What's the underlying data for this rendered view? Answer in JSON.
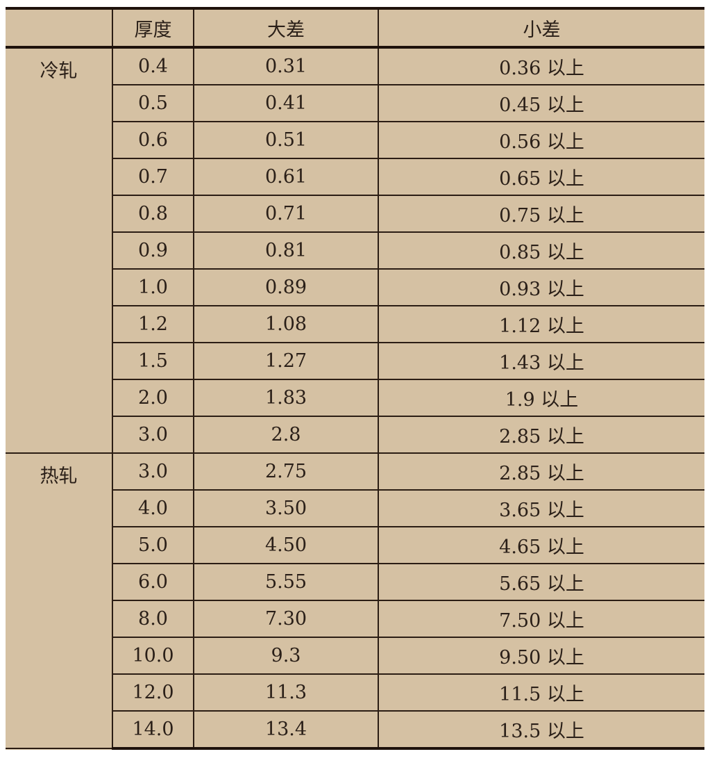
{
  "table": {
    "headers": [
      "",
      "厚度",
      "大差",
      "小差"
    ],
    "groups": [
      {
        "label": "冷轧",
        "rows": [
          [
            "0.4",
            "0.31",
            "0.36 以上"
          ],
          [
            "0.5",
            "0.41",
            "0.45 以上"
          ],
          [
            "0.6",
            "0.51",
            "0.56 以上"
          ],
          [
            "0.7",
            "0.61",
            "0.65 以上"
          ],
          [
            "0.8",
            "0.71",
            "0.75 以上"
          ],
          [
            "0.9",
            "0.81",
            "0.85 以上"
          ],
          [
            "1.0",
            "0.89",
            "0.93 以上"
          ],
          [
            "1.2",
            "1.08",
            "1.12 以上"
          ],
          [
            "1.5",
            "1.27",
            "1.43 以上"
          ],
          [
            "2.0",
            "1.83",
            "1.9 以上"
          ],
          [
            "3.0",
            "2.8",
            "2.85 以上"
          ]
        ]
      },
      {
        "label": "热轧",
        "rows": [
          [
            "3.0",
            "2.75",
            "2.85 以上"
          ],
          [
            "4.0",
            "3.50",
            "3.65 以上"
          ],
          [
            "5.0",
            "4.50",
            "4.65 以上"
          ],
          [
            "6.0",
            "5.55",
            "5.65 以上"
          ],
          [
            "8.0",
            "7.30",
            "7.50 以上"
          ],
          [
            "10.0",
            "9.3",
            "9.50 以上"
          ],
          [
            "12.0",
            "11.3",
            "11.5 以上"
          ],
          [
            "14.0",
            "13.4",
            "13.5 以上"
          ]
        ]
      }
    ]
  },
  "colors": {
    "background": "#d5c1a3",
    "border": "#2b1d14",
    "text": "#2a1f18"
  }
}
